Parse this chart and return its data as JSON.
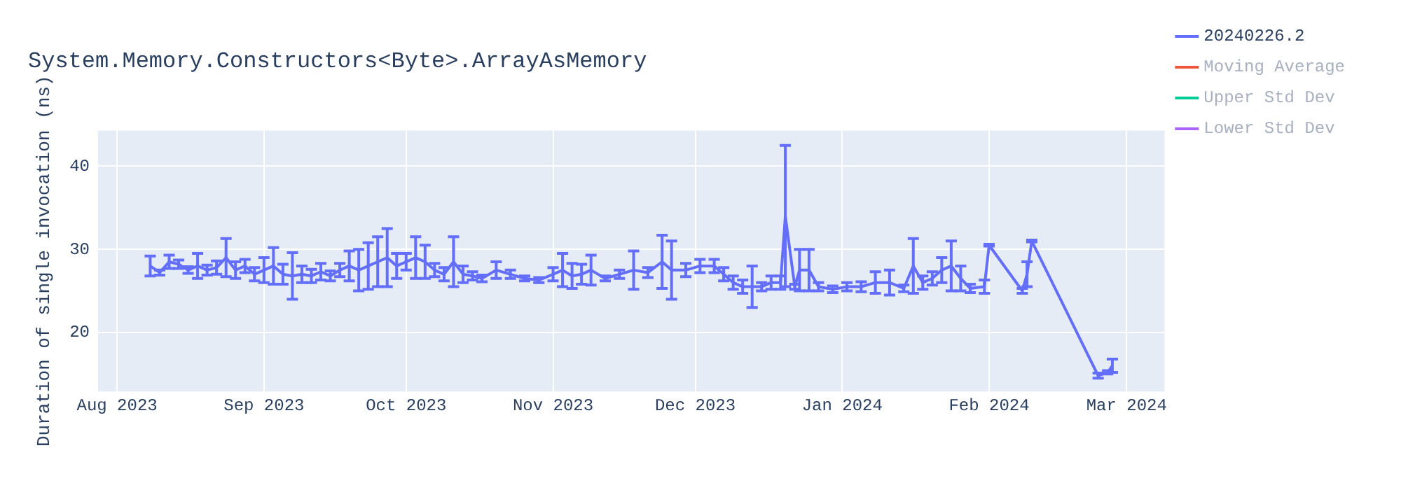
{
  "chart_data": {
    "type": "line",
    "title": "System.Memory.Constructors<Byte>.ArrayAsMemory",
    "ylabel": "Duration of single invocation (ns)",
    "x": [
      "2023-08-08",
      "2023-08-10",
      "2023-08-12",
      "2023-08-14",
      "2023-08-16",
      "2023-08-18",
      "2023-08-20",
      "2023-08-22",
      "2023-08-24",
      "2023-08-26",
      "2023-08-28",
      "2023-08-30",
      "2023-09-01",
      "2023-09-03",
      "2023-09-05",
      "2023-09-07",
      "2023-09-09",
      "2023-09-11",
      "2023-09-13",
      "2023-09-15",
      "2023-09-17",
      "2023-09-19",
      "2023-09-21",
      "2023-09-23",
      "2023-09-25",
      "2023-09-27",
      "2023-09-29",
      "2023-10-01",
      "2023-10-03",
      "2023-10-05",
      "2023-10-07",
      "2023-10-09",
      "2023-10-11",
      "2023-10-13",
      "2023-10-15",
      "2023-10-17",
      "2023-10-20",
      "2023-10-23",
      "2023-10-26",
      "2023-10-29",
      "2023-11-01",
      "2023-11-03",
      "2023-11-05",
      "2023-11-07",
      "2023-11-09",
      "2023-11-12",
      "2023-11-15",
      "2023-11-18",
      "2023-11-21",
      "2023-11-24",
      "2023-11-26",
      "2023-11-29",
      "2023-12-02",
      "2023-12-05",
      "2023-12-07",
      "2023-12-09",
      "2023-12-11",
      "2023-12-13",
      "2023-12-15",
      "2023-12-17",
      "2023-12-19",
      "2023-12-20",
      "2023-12-22",
      "2023-12-23",
      "2023-12-25",
      "2023-12-27",
      "2023-12-30",
      "2024-01-02",
      "2024-01-05",
      "2024-01-08",
      "2024-01-11",
      "2024-01-14",
      "2024-01-16",
      "2024-01-18",
      "2024-01-20",
      "2024-01-22",
      "2024-01-24",
      "2024-01-26",
      "2024-01-28",
      "2024-01-31",
      "2024-02-01",
      "2024-02-08",
      "2024-02-09",
      "2024-02-10",
      "2024-02-24",
      "2024-02-26",
      "2024-02-27"
    ],
    "series": [
      {
        "name": "20240226.2",
        "color": "#636efa",
        "values": [
          28,
          27.2,
          28.5,
          28.2,
          27.5,
          28,
          27.5,
          27.8,
          29,
          27.5,
          28,
          27,
          27.5,
          28,
          27,
          26.8,
          27,
          26.8,
          27.3,
          26.8,
          27.5,
          28,
          27.5,
          28,
          28.5,
          29,
          28,
          28.5,
          29,
          28.5,
          27.5,
          27,
          28.5,
          27,
          26.8,
          26.5,
          27.5,
          27,
          26.5,
          26.3,
          27,
          27.5,
          26.8,
          27,
          27.5,
          26.5,
          27,
          27.5,
          27.2,
          28.5,
          27.5,
          27.5,
          28,
          28,
          27,
          26,
          25.5,
          25.5,
          25.5,
          26,
          26,
          34,
          25.5,
          27.5,
          27.5,
          25.5,
          25.2,
          25.5,
          25.5,
          26,
          26,
          25.3,
          28,
          26,
          26.5,
          27.5,
          28,
          26.5,
          25.3,
          25.5,
          30.5,
          25,
          27,
          31,
          14.8,
          15.2,
          16
        ],
        "errors": [
          1.2,
          0.3,
          0.8,
          0.5,
          0.4,
          1.5,
          0.6,
          0.8,
          2.3,
          1,
          0.8,
          0.8,
          1.5,
          2.2,
          1.2,
          2.8,
          1,
          0.8,
          1,
          0.6,
          0.8,
          1.8,
          2.5,
          2.8,
          3,
          3.5,
          1.5,
          1,
          2.5,
          2,
          0.8,
          0.8,
          3,
          1,
          0.5,
          0.4,
          1,
          0.5,
          0.3,
          0.3,
          0.8,
          2,
          1.5,
          1.2,
          1.8,
          0.3,
          0.5,
          2.3,
          0.6,
          3.2,
          3.5,
          0.8,
          0.8,
          0.8,
          0.8,
          0.8,
          0.8,
          2.5,
          0.5,
          0.8,
          0.8,
          8.5,
          0.3,
          2.5,
          2.5,
          0.5,
          0.4,
          0.5,
          0.6,
          1.3,
          1.5,
          0.4,
          3.3,
          0.8,
          0.8,
          1.5,
          3,
          1.5,
          0.5,
          0.8,
          0.1,
          0.3,
          1.5,
          0.1,
          0.3,
          0.2,
          0.8
        ]
      },
      {
        "name": "Moving Average",
        "color": "#ef553b",
        "values": [
          null,
          null,
          null,
          null,
          null,
          null,
          null,
          null,
          null,
          null,
          null,
          null,
          null,
          null,
          null,
          null,
          null,
          null,
          null,
          null,
          null,
          null,
          null,
          null,
          null,
          null,
          null,
          null,
          null,
          null,
          null,
          null,
          null,
          null,
          null,
          null,
          null,
          null,
          null,
          null,
          null,
          null,
          null,
          null,
          null,
          null,
          null,
          null,
          null,
          null,
          null,
          null,
          null,
          null,
          null,
          null,
          null,
          null,
          null,
          null,
          null,
          null,
          null,
          null,
          null,
          null,
          null,
          null,
          null,
          null,
          null,
          null,
          null,
          null,
          null,
          null,
          null,
          null,
          null,
          null,
          null,
          null,
          null,
          null,
          null,
          null,
          null
        ]
      },
      {
        "name": "Upper Std Dev",
        "color": "#00cc96",
        "values": [
          null,
          null,
          null,
          null,
          null,
          null,
          null,
          null,
          null,
          null,
          null,
          null,
          null,
          null,
          null,
          null,
          null,
          null,
          null,
          null,
          null,
          null,
          null,
          null,
          null,
          null,
          null,
          null,
          null,
          null,
          null,
          null,
          null,
          null,
          null,
          null,
          null,
          null,
          null,
          null,
          null,
          null,
          null,
          null,
          null,
          null,
          null,
          null,
          null,
          null,
          null,
          null,
          null,
          null,
          null,
          null,
          null,
          null,
          null,
          null,
          null,
          null,
          null,
          null,
          null,
          null,
          null,
          null,
          null,
          null,
          null,
          null,
          null,
          null,
          null,
          null,
          null,
          null,
          null,
          null,
          null,
          null,
          null,
          null,
          null,
          null,
          null
        ]
      },
      {
        "name": "Lower Std Dev",
        "color": "#ab63fa",
        "values": [
          null,
          null,
          null,
          null,
          null,
          null,
          null,
          null,
          null,
          null,
          null,
          null,
          null,
          null,
          null,
          null,
          null,
          null,
          null,
          null,
          null,
          null,
          null,
          null,
          null,
          null,
          null,
          null,
          null,
          null,
          null,
          null,
          null,
          null,
          null,
          null,
          null,
          null,
          null,
          null,
          null,
          null,
          null,
          null,
          null,
          null,
          null,
          null,
          null,
          null,
          null,
          null,
          null,
          null,
          null,
          null,
          null,
          null,
          null,
          null,
          null,
          null,
          null,
          null,
          null,
          null,
          null,
          null,
          null,
          null,
          null,
          null,
          null,
          null,
          null,
          null,
          null,
          null,
          null,
          null,
          null,
          null,
          null,
          null,
          null,
          null,
          null
        ]
      }
    ],
    "xlim": [
      "2023-07-28",
      "2024-03-09"
    ],
    "xticks": [
      {
        "value": "2023-08-01",
        "label": "Aug 2023"
      },
      {
        "value": "2023-09-01",
        "label": "Sep 2023"
      },
      {
        "value": "2023-10-01",
        "label": "Oct 2023"
      },
      {
        "value": "2023-11-01",
        "label": "Nov 2023"
      },
      {
        "value": "2023-12-01",
        "label": "Dec 2023"
      },
      {
        "value": "2024-01-01",
        "label": "Jan 2024"
      },
      {
        "value": "2024-02-01",
        "label": "Feb 2024"
      },
      {
        "value": "2024-03-01",
        "label": "Mar 2024"
      }
    ],
    "ylim": [
      12.9,
      44.3
    ],
    "yticks": [
      20,
      30,
      40
    ],
    "grid": true,
    "legend": "top right",
    "marker": "none",
    "line_style": "solid"
  }
}
